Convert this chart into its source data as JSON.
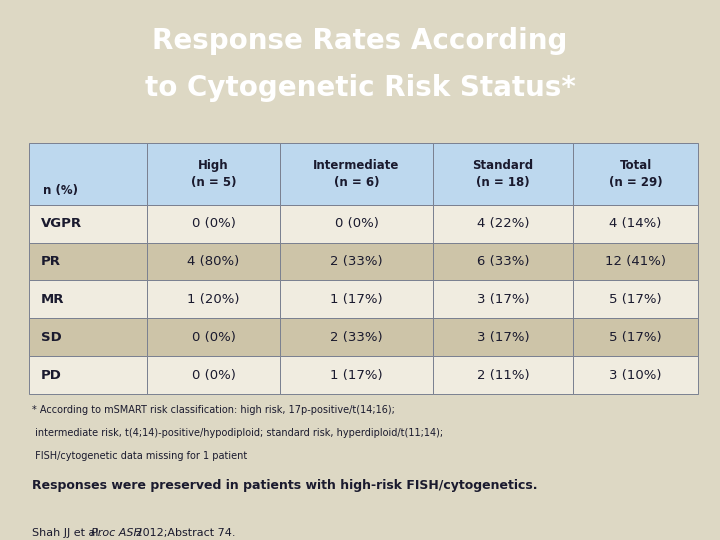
{
  "title_line1": "Response Rates According",
  "title_line2": "to Cytogenetic Risk Status*",
  "title_bg": "#0f2d6b",
  "title_color": "#ffffff",
  "bg_color": "#ddd8c4",
  "header_row_bg": "#bdd8ee",
  "data_row_bg_odd": "#f0ece0",
  "data_row_bg_even": "#cdc4a8",
  "border_color": "#7a8090",
  "text_color": "#1a1a2e",
  "col_headers": [
    "High\n(n = 5)",
    "Intermediate\n(n = 6)",
    "Standard\n(n = 18)",
    "Total\n(n = 29)"
  ],
  "row_headers": [
    "n (%)",
    "VGPR",
    "PR",
    "MR",
    "SD",
    "PD"
  ],
  "table_data": [
    [
      "0 (0%)",
      "0 (0%)",
      "4 (22%)",
      "4 (14%)"
    ],
    [
      "4 (80%)",
      "2 (33%)",
      "6 (33%)",
      "12 (41%)"
    ],
    [
      "1 (20%)",
      "1 (17%)",
      "3 (17%)",
      "5 (17%)"
    ],
    [
      "0 (0%)",
      "2 (33%)",
      "3 (17%)",
      "5 (17%)"
    ],
    [
      "0 (0%)",
      "1 (17%)",
      "2 (11%)",
      "3 (10%)"
    ]
  ],
  "footnote1": "* According to mSMART risk classification: high risk, 17p-positive/t(14;16);",
  "footnote2": " intermediate risk, t(4;14)-positive/hypodiploid; standard risk, hyperdiploid/t(11;14);",
  "footnote3": " FISH/cytogenetic data missing for 1 patient",
  "statement": "Responses were preserved in patients with high-risk FISH/cytogenetics.",
  "citation_normal": "Shah JJ et al. ",
  "citation_italic": "Proc ASH",
  "citation_end": " 2012;Abstract 74."
}
